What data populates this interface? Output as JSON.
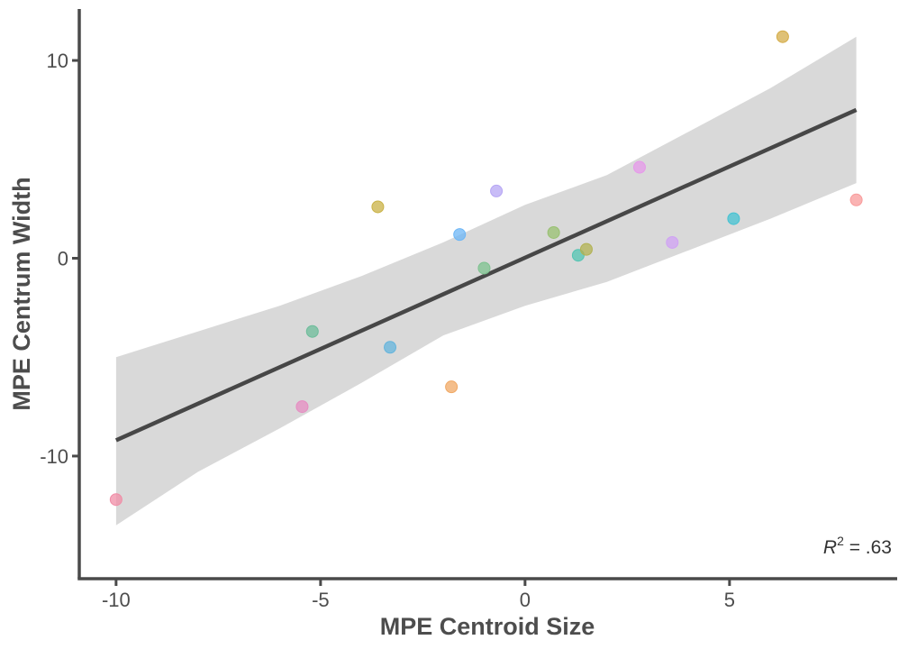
{
  "chart_data": {
    "type": "scatter",
    "title": "",
    "xlabel": "MPE Centroid Size",
    "ylabel": "MPE Centrum Width",
    "xlim": [
      -10.9,
      9.1
    ],
    "ylim": [
      -16.2,
      12.6
    ],
    "xticks": [
      -10,
      -5,
      0,
      5
    ],
    "yticks": [
      -10,
      0,
      10
    ],
    "grid": false,
    "legend": "none",
    "points": [
      {
        "x": -10.0,
        "y": -12.2,
        "color": "#f08ca6"
      },
      {
        "x": -5.45,
        "y": -7.5,
        "color": "#e68cc2"
      },
      {
        "x": -5.2,
        "y": -3.7,
        "color": "#6cbc9a"
      },
      {
        "x": -3.6,
        "y": 2.6,
        "color": "#c9b246"
      },
      {
        "x": -3.3,
        "y": -4.5,
        "color": "#64b4dc"
      },
      {
        "x": -1.8,
        "y": -6.5,
        "color": "#f0a864"
      },
      {
        "x": -1.6,
        "y": 1.2,
        "color": "#6cb6f6"
      },
      {
        "x": -1.0,
        "y": -0.5,
        "color": "#7cc28e"
      },
      {
        "x": -0.7,
        "y": 3.4,
        "color": "#b6a6f4"
      },
      {
        "x": 0.7,
        "y": 1.3,
        "color": "#98c070"
      },
      {
        "x": 1.3,
        "y": 0.15,
        "color": "#52c4b2"
      },
      {
        "x": 1.5,
        "y": 0.45,
        "color": "#b2b252"
      },
      {
        "x": 2.8,
        "y": 4.6,
        "color": "#e698ea"
      },
      {
        "x": 3.6,
        "y": 0.8,
        "color": "#d0a2f4"
      },
      {
        "x": 5.1,
        "y": 2.0,
        "color": "#44c2d2"
      },
      {
        "x": 6.3,
        "y": 11.2,
        "color": "#d4ac48"
      },
      {
        "x": 8.1,
        "y": 2.95,
        "color": "#f89a9a"
      }
    ],
    "fit_line": {
      "x": [
        -10.0,
        8.1
      ],
      "y": [
        -9.2,
        7.5
      ],
      "ci_x": [
        -10.0,
        -8,
        -6,
        -4,
        -2,
        0,
        2,
        4,
        6,
        8.1
      ],
      "ci_upper": [
        -5.0,
        -3.7,
        -2.4,
        -0.9,
        0.8,
        2.7,
        4.2,
        6.4,
        8.6,
        11.2
      ],
      "ci_lower": [
        -13.5,
        -10.8,
        -8.6,
        -6.3,
        -3.9,
        -2.4,
        -1.2,
        0.4,
        2.0,
        3.8
      ],
      "color": "#474747",
      "ci_color": "#d9d9d9"
    },
    "annotation": {
      "r_symbol": "R",
      "superscript": "2",
      "value_text": " = .63"
    }
  }
}
